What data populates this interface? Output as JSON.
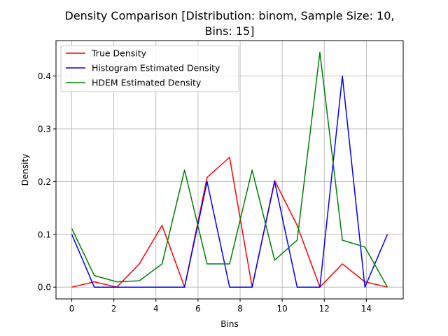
{
  "chart_data": {
    "type": "line",
    "title_lines": [
      "Density Comparison [Distribution: binom, Sample Size: 10,",
      "Bins: 15]"
    ],
    "xlabel": "Bins",
    "ylabel": "Density",
    "xlim": [
      -0.75,
      15.75
    ],
    "ylim": [
      -0.0223,
      0.4672
    ],
    "xticks": [
      0,
      2,
      4,
      6,
      8,
      10,
      12,
      14
    ],
    "yticks": [
      0.0,
      0.1,
      0.2,
      0.3,
      0.4
    ],
    "ytick_labels": [
      "0.0",
      "0.1",
      "0.2",
      "0.3",
      "0.4"
    ],
    "grid": true,
    "legend_position": "top-left",
    "x": [
      0,
      1.07,
      2.14,
      3.21,
      4.29,
      5.36,
      6.43,
      7.5,
      8.57,
      9.64,
      10.71,
      11.79,
      12.86,
      13.93,
      15
    ],
    "series": [
      {
        "name": "True Density",
        "color": "#ff0000",
        "values": [
          0.0,
          0.01,
          0.0,
          0.044,
          0.117,
          0.0,
          0.208,
          0.246,
          0.0,
          0.202,
          0.117,
          0.0,
          0.044,
          0.01,
          0.0
        ]
      },
      {
        "name": "Histogram Estimated Density",
        "color": "#0000ff",
        "values": [
          0.1,
          0.0,
          0.0,
          0.0,
          0.0,
          0.0,
          0.2,
          0.0,
          0.0,
          0.2,
          0.0,
          0.0,
          0.4,
          0.0,
          0.1
        ]
      },
      {
        "name": "HDEM Estimated Density",
        "color": "#008000",
        "values": [
          0.111,
          0.022,
          0.01,
          0.012,
          0.044,
          0.222,
          0.044,
          0.044,
          0.222,
          0.051,
          0.089,
          0.445,
          0.089,
          0.076,
          0.0
        ]
      }
    ]
  }
}
